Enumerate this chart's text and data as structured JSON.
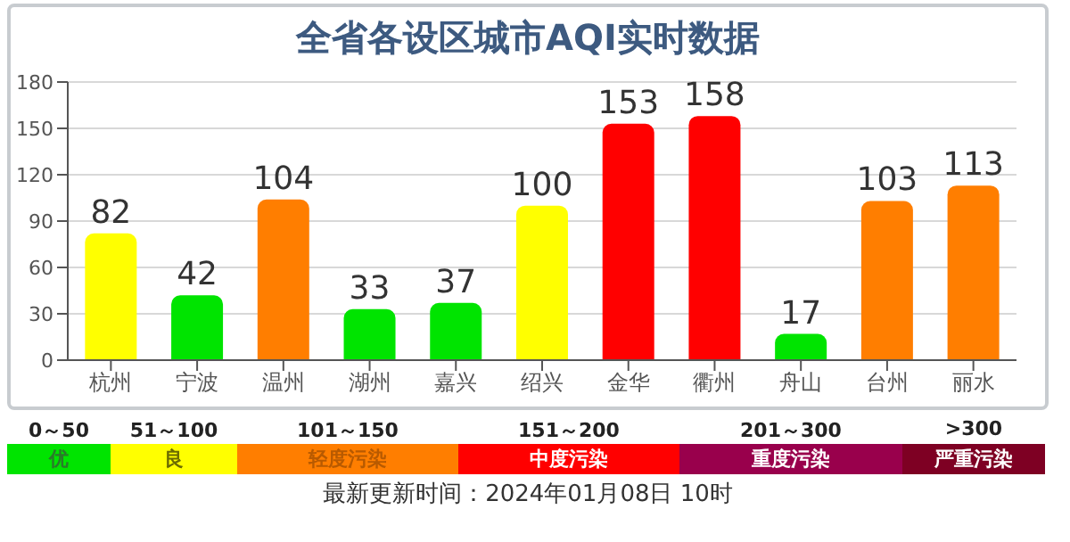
{
  "chart_data": {
    "type": "bar",
    "title": "全省各设区城市AQI实时数据",
    "categories": [
      "杭州",
      "宁波",
      "温州",
      "湖州",
      "嘉兴",
      "绍兴",
      "金华",
      "衢州",
      "舟山",
      "台州",
      "丽水"
    ],
    "values": [
      82,
      42,
      104,
      33,
      37,
      100,
      153,
      158,
      17,
      103,
      113
    ],
    "colors": [
      "#ffff00",
      "#00e400",
      "#ff7e00",
      "#00e400",
      "#00e400",
      "#ffff00",
      "#ff0000",
      "#ff0000",
      "#00e400",
      "#ff7e00",
      "#ff7e00"
    ],
    "ylim": [
      0,
      180
    ],
    "yticks": [
      0,
      30,
      60,
      90,
      120,
      150,
      180
    ],
    "grid": "y",
    "data_labels": true,
    "annotations": [
      "0～50",
      "优",
      "51～100",
      "良",
      "101～150",
      "轻度污染",
      "151～200",
      "中度污染",
      "201～300",
      "重度污染",
      ">300",
      "严重污染",
      "最新更新时间：2024年01月08日 10时"
    ]
  }
}
